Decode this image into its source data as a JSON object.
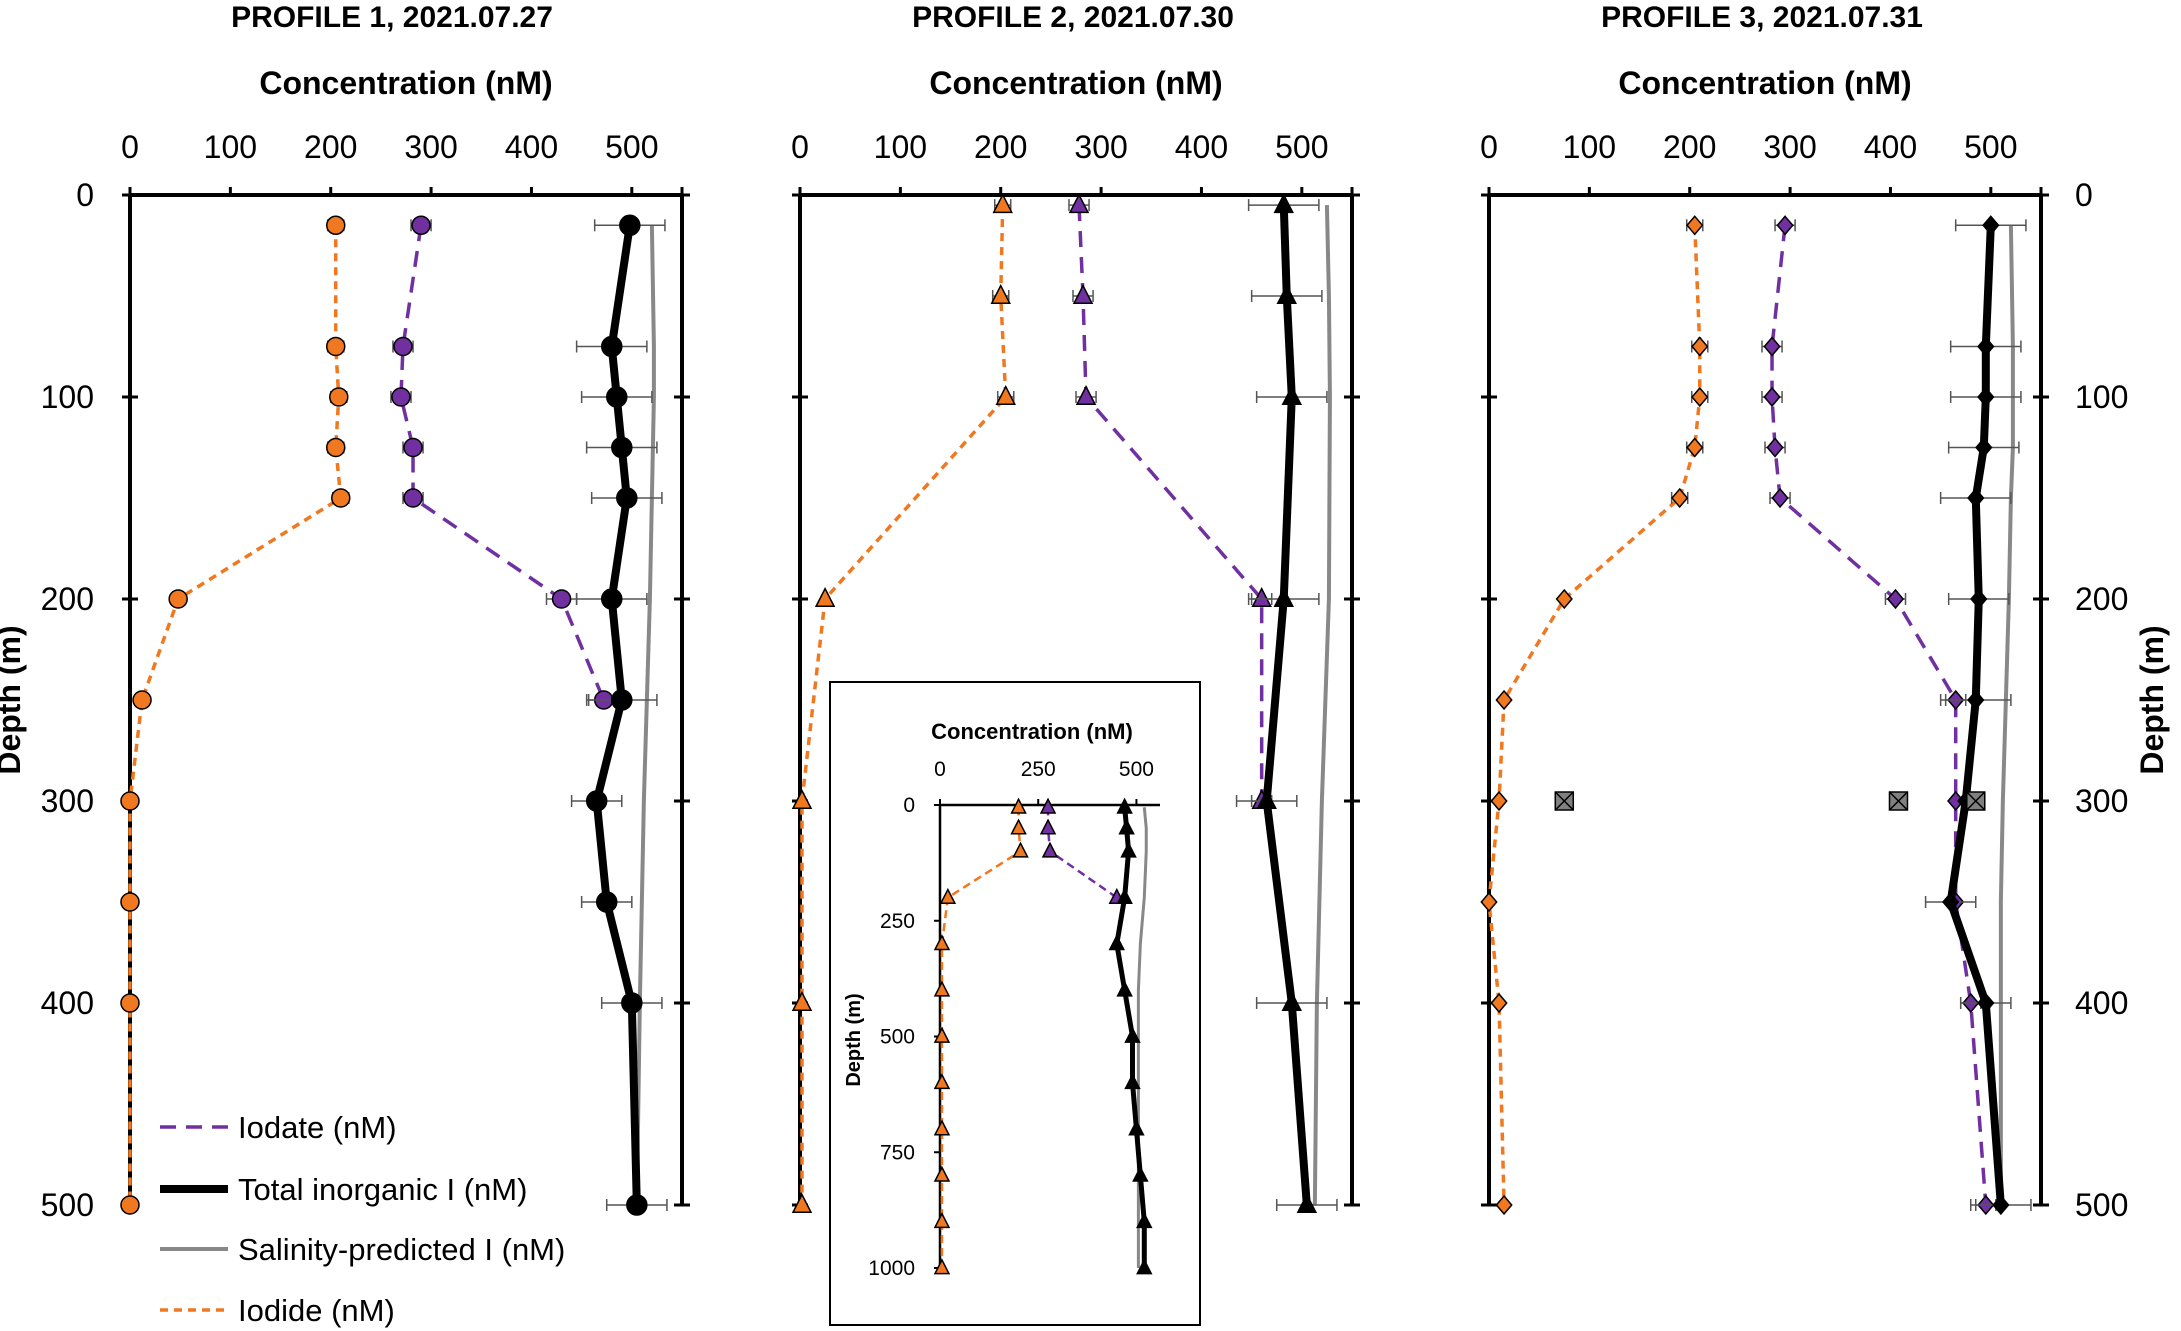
{
  "chart_data": [
    {
      "type": "line",
      "title": "PROFILE 1, 2021.07.27",
      "xlabel": "Concentration (nM)",
      "ylabel": "Depth (m)",
      "xlim": [
        0,
        550
      ],
      "ylim": [
        0,
        500
      ],
      "xticks": [
        0,
        100,
        200,
        300,
        400,
        500
      ],
      "yticks": [
        0,
        100,
        200,
        300,
        400,
        500
      ],
      "y_inverted": true,
      "x_axis_position": "top",
      "marker": "circle",
      "series": [
        {
          "name": "Iodate (nM)",
          "color": "#7030A0",
          "style": "dashed",
          "x": [
            290,
            272,
            270,
            282,
            282,
            430,
            472
          ],
          "y": [
            15,
            75,
            100,
            125,
            150,
            200,
            250
          ],
          "err": [
            10,
            10,
            10,
            10,
            10,
            15,
            15
          ]
        },
        {
          "name": "Total inorganic I (nM)",
          "color": "#000000",
          "style": "solid",
          "x": [
            498,
            480,
            485,
            490,
            495,
            480,
            490,
            465,
            475,
            500,
            505
          ],
          "y": [
            15,
            75,
            100,
            125,
            150,
            200,
            250,
            300,
            350,
            400,
            500
          ],
          "err": [
            35,
            35,
            35,
            35,
            35,
            35,
            35,
            25,
            25,
            30,
            30
          ]
        },
        {
          "name": "Salinity-predicted I (nM)",
          "color": "#888888",
          "style": "solid",
          "x": [
            520,
            522,
            522,
            521,
            520,
            518,
            515,
            512,
            510,
            508,
            505
          ],
          "y": [
            15,
            75,
            100,
            125,
            150,
            200,
            250,
            300,
            350,
            400,
            500
          ]
        },
        {
          "name": "Iodide (nM)",
          "color": "#F07820",
          "style": "dashed",
          "x": [
            205,
            205,
            208,
            205,
            210,
            48,
            12,
            0,
            0,
            0,
            0
          ],
          "y": [
            15,
            75,
            100,
            125,
            150,
            200,
            250,
            300,
            350,
            400,
            500
          ],
          "err": [
            8,
            8,
            8,
            8,
            8,
            0,
            0,
            0,
            0,
            0,
            0
          ]
        }
      ]
    },
    {
      "type": "line",
      "title": "PROFILE 2, 2021.07.30",
      "xlabel": "Concentration (nM)",
      "ylabel": "",
      "xlim": [
        0,
        550
      ],
      "ylim": [
        0,
        500
      ],
      "xticks": [
        0,
        100,
        200,
        300,
        400,
        500
      ],
      "yticks": [
        0,
        100,
        200,
        300,
        400,
        500
      ],
      "y_inverted": true,
      "x_axis_position": "top",
      "marker": "triangle",
      "series": [
        {
          "name": "Iodate (nM)",
          "color": "#7030A0",
          "style": "dashed",
          "x": [
            278,
            282,
            285,
            460,
            460
          ],
          "y": [
            5,
            50,
            100,
            200,
            300
          ],
          "err": [
            10,
            10,
            10,
            10,
            10
          ]
        },
        {
          "name": "Total inorganic I (nM)",
          "color": "#000000",
          "style": "solid",
          "x": [
            482,
            485,
            490,
            482,
            465,
            490,
            505
          ],
          "y": [
            5,
            50,
            100,
            200,
            300,
            400,
            500
          ],
          "err": [
            35,
            35,
            35,
            35,
            30,
            35,
            30
          ]
        },
        {
          "name": "Salinity-predicted I (nM)",
          "color": "#888888",
          "style": "solid",
          "x": [
            525,
            527,
            528,
            527,
            520,
            515,
            513
          ],
          "y": [
            5,
            50,
            100,
            200,
            300,
            400,
            500
          ]
        },
        {
          "name": "Iodide (nM)",
          "color": "#F07820",
          "style": "dashed",
          "x": [
            202,
            200,
            205,
            25,
            2,
            2,
            2
          ],
          "y": [
            5,
            50,
            100,
            200,
            300,
            400,
            500
          ],
          "err": [
            8,
            8,
            8,
            0,
            0,
            0,
            0
          ]
        }
      ],
      "inset": {
        "type": "line",
        "xlabel": "Concentration (nM)",
        "ylabel": "Depth (m)",
        "xlim": [
          0,
          560
        ],
        "ylim": [
          0,
          1000
        ],
        "xticks": [
          0,
          250,
          500
        ],
        "yticks": [
          0,
          250,
          500,
          750,
          1000
        ],
        "y_inverted": true,
        "marker": "triangle",
        "series": [
          {
            "name": "Iodate (nM)",
            "color": "#7030A0",
            "style": "dashed",
            "x": [
              275,
              275,
              280,
              450
            ],
            "y": [
              5,
              50,
              100,
              200
            ]
          },
          {
            "name": "Total inorganic I (nM)",
            "color": "#000000",
            "style": "solid",
            "x": [
              470,
              475,
              480,
              470,
              450,
              470,
              490,
              490,
              500,
              510,
              520,
              520
            ],
            "y": [
              5,
              50,
              100,
              200,
              300,
              400,
              500,
              600,
              700,
              800,
              900,
              1000
            ]
          },
          {
            "name": "Salinity-predicted I (nM)",
            "color": "#888888",
            "style": "solid",
            "x": [
              520,
              525,
              525,
              520,
              510,
              505,
              505,
              505,
              505,
              505,
              505,
              505
            ],
            "y": [
              5,
              50,
              100,
              200,
              300,
              400,
              500,
              600,
              700,
              800,
              900,
              1000
            ]
          },
          {
            "name": "Iodide (nM)",
            "color": "#F07820",
            "style": "dashed",
            "x": [
              200,
              200,
              205,
              20,
              5,
              5,
              5,
              5,
              5,
              5,
              5,
              5
            ],
            "y": [
              5,
              50,
              100,
              200,
              300,
              400,
              500,
              600,
              700,
              800,
              900,
              1000
            ]
          }
        ]
      }
    },
    {
      "type": "line",
      "title": "PROFILE 3, 2021.07.31",
      "xlabel": "Concentration (nM)",
      "ylabel": "Depth (m)",
      "xlim": [
        0,
        550
      ],
      "ylim": [
        0,
        500
      ],
      "xticks": [
        0,
        100,
        200,
        300,
        400,
        500
      ],
      "yticks": [
        0,
        100,
        200,
        300,
        400,
        500
      ],
      "y_inverted": true,
      "x_axis_position": "top",
      "y_axis_position": "right",
      "marker": "diamond",
      "series": [
        {
          "name": "Iodate (nM)",
          "color": "#7030A0",
          "style": "dashed",
          "x": [
            295,
            282,
            282,
            285,
            290,
            405,
            465,
            465,
            465,
            480,
            495
          ],
          "y": [
            15,
            75,
            100,
            125,
            150,
            200,
            250,
            300,
            350,
            400,
            500
          ],
          "err": [
            10,
            10,
            10,
            10,
            10,
            10,
            10,
            0,
            0,
            10,
            10
          ]
        },
        {
          "name": "Total inorganic I (nM)",
          "color": "#000000",
          "style": "solid",
          "x": [
            500,
            495,
            495,
            493,
            485,
            488,
            485,
            475,
            460,
            495,
            510
          ],
          "y": [
            15,
            75,
            100,
            125,
            150,
            200,
            250,
            300,
            350,
            400,
            500
          ],
          "err": [
            35,
            35,
            35,
            35,
            35,
            30,
            35,
            0,
            25,
            25,
            30
          ]
        },
        {
          "name": "Salinity-predicted I (nM)",
          "color": "#888888",
          "style": "solid",
          "x": [
            520,
            522,
            522,
            522,
            520,
            518,
            515,
            512,
            510,
            510,
            510
          ],
          "y": [
            15,
            75,
            100,
            125,
            150,
            200,
            250,
            300,
            350,
            400,
            500
          ]
        },
        {
          "name": "Iodide (nM)",
          "color": "#F07820",
          "style": "dashed",
          "x": [
            205,
            210,
            210,
            205,
            190,
            75,
            15,
            10,
            0,
            10,
            15
          ],
          "y": [
            15,
            75,
            100,
            125,
            150,
            200,
            250,
            300,
            350,
            400,
            500
          ],
          "err": [
            8,
            8,
            8,
            8,
            8,
            0,
            0,
            0,
            0,
            0,
            0
          ]
        }
      ],
      "extra_points": {
        "name": "",
        "color": "#808080",
        "marker": "square-x",
        "x": [
          75,
          408,
          485
        ],
        "y": [
          300,
          300,
          300
        ]
      }
    }
  ],
  "legend": {
    "placement": "bottom-left",
    "items": [
      {
        "label": "Iodate (nM)",
        "color": "#7030A0",
        "style": "dashed"
      },
      {
        "label": "Total inorganic I (nM)",
        "color": "#000000",
        "style": "solid"
      },
      {
        "label": "Salinity-predicted I (nM)",
        "color": "#888888",
        "style": "solid"
      },
      {
        "label": "Iodide (nM)",
        "color": "#F07820",
        "style": "dashed"
      }
    ]
  }
}
